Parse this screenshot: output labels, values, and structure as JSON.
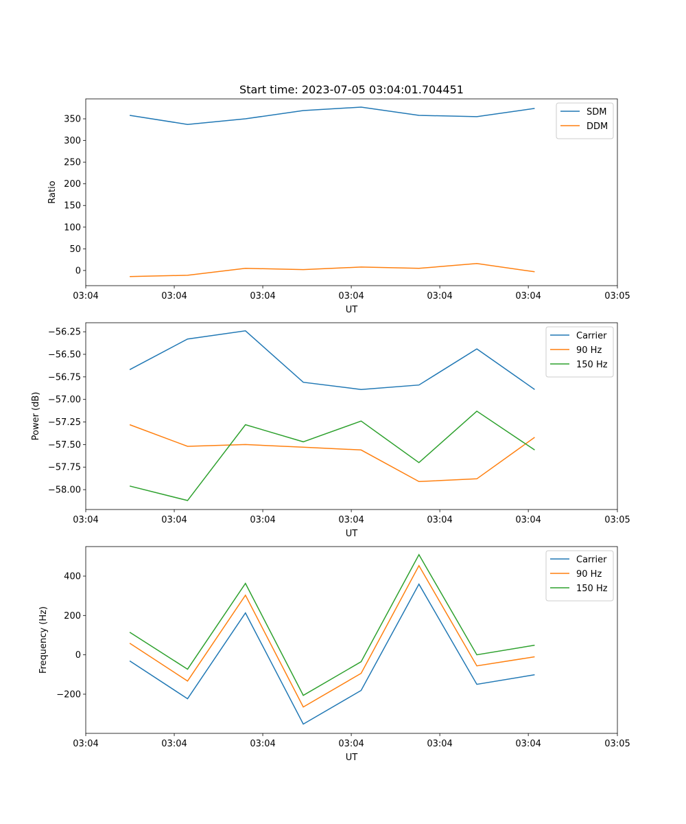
{
  "chart_data": [
    {
      "type": "line",
      "title": "Start time: 2023-07-05 03:04:01.704451",
      "xlabel": "UT",
      "ylabel": "Ratio",
      "x": [
        0,
        1,
        2,
        3,
        4,
        5,
        6,
        7
      ],
      "xlim": [
        -0.76,
        8.43
      ],
      "xticks": [
        -0.76,
        0.77,
        2.3,
        3.83,
        5.36,
        6.89,
        8.43
      ],
      "xtick_labels": [
        "03:04",
        "03:04",
        "03:04",
        "03:04",
        "03:04",
        "03:04",
        "03:05"
      ],
      "ylim": [
        -35,
        396
      ],
      "yticks": [
        0,
        50,
        100,
        150,
        200,
        250,
        300,
        350
      ],
      "ytick_labels": [
        "0",
        "50",
        "100",
        "150",
        "200",
        "250",
        "300",
        "350"
      ],
      "legend": "top-right",
      "series": [
        {
          "name": "SDM",
          "color": "#1f77b4",
          "values": [
            358,
            337,
            350,
            369,
            377,
            358,
            355,
            374
          ]
        },
        {
          "name": "DDM",
          "color": "#ff7f0e",
          "values": [
            -14,
            -11,
            5,
            2,
            8,
            5,
            16,
            -3
          ]
        }
      ]
    },
    {
      "type": "line",
      "xlabel": "UT",
      "ylabel": "Power (dB)",
      "x": [
        0,
        1,
        2,
        3,
        4,
        5,
        6,
        7
      ],
      "xlim": [
        -0.76,
        8.43
      ],
      "xticks": [
        -0.76,
        0.77,
        2.3,
        3.83,
        5.36,
        6.89,
        8.43
      ],
      "xtick_labels": [
        "03:04",
        "03:04",
        "03:04",
        "03:04",
        "03:04",
        "03:04",
        "03:05"
      ],
      "ylim": [
        -58.22,
        -56.15
      ],
      "yticks": [
        -56.25,
        -56.5,
        -56.75,
        -57.0,
        -57.25,
        -57.5,
        -57.75,
        -58.0
      ],
      "ytick_labels": [
        "−56.25",
        "−56.50",
        "−56.75",
        "−57.00",
        "−57.25",
        "−57.50",
        "−57.75",
        "−58.00"
      ],
      "legend": "top-right",
      "series": [
        {
          "name": "Carrier",
          "color": "#1f77b4",
          "values": [
            -56.67,
            -56.33,
            -56.24,
            -56.81,
            -56.89,
            -56.84,
            -56.44,
            -56.89
          ]
        },
        {
          "name": "90 Hz",
          "color": "#ff7f0e",
          "values": [
            -57.28,
            -57.52,
            -57.5,
            -57.53,
            -57.56,
            -57.91,
            -57.88,
            -57.42
          ]
        },
        {
          "name": "150 Hz",
          "color": "#2ca02c",
          "values": [
            -57.96,
            -58.12,
            -57.28,
            -57.47,
            -57.24,
            -57.7,
            -57.13,
            -57.56
          ]
        }
      ]
    },
    {
      "type": "line",
      "xlabel": "UT",
      "ylabel": "Frequency (Hz)",
      "x": [
        0,
        1,
        2,
        3,
        4,
        5,
        6,
        7
      ],
      "xlim": [
        -0.76,
        8.43
      ],
      "xticks": [
        -0.76,
        0.77,
        2.3,
        3.83,
        5.36,
        6.89,
        8.43
      ],
      "xtick_labels": [
        "03:04",
        "03:04",
        "03:04",
        "03:04",
        "03:04",
        "03:04",
        "03:05"
      ],
      "ylim": [
        -399,
        550
      ],
      "yticks": [
        -200,
        0,
        200,
        400
      ],
      "ytick_labels": [
        "−200",
        "0",
        "200",
        "400"
      ],
      "legend": "top-right",
      "series": [
        {
          "name": "Carrier",
          "color": "#1f77b4",
          "values": [
            -31,
            -223,
            213,
            -352,
            -181,
            359,
            -150,
            -101
          ]
        },
        {
          "name": "90 Hz",
          "color": "#ff7f0e",
          "values": [
            59,
            -133,
            303,
            -265,
            -94,
            453,
            -56,
            -10
          ]
        },
        {
          "name": "150 Hz",
          "color": "#2ca02c",
          "values": [
            115,
            -73,
            363,
            -206,
            -35,
            509,
            0,
            49
          ]
        }
      ]
    }
  ]
}
